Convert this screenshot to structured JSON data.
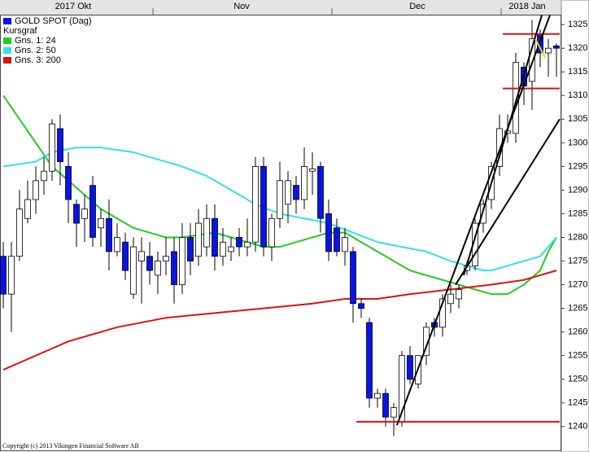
{
  "chart_data": {
    "type": "candlestick",
    "name": "GOLD SPOT (Dag)",
    "legend_note": "Kursgraf",
    "copyright": "Copyright (c) 2013 Vikingen Financial Software AB",
    "up_color": "#ffffff",
    "down_color": "#0a14e6",
    "open": [
      1276,
      1268,
      1276,
      1284,
      1288,
      1292,
      1294,
      1303,
      1295,
      1287,
      1284,
      1291,
      1282,
      1284,
      1277,
      1279,
      1268,
      1275,
      1276,
      1272,
      1275,
      1277,
      1270,
      1280,
      1276,
      1278,
      1284,
      1276,
      1277,
      1280,
      1278,
      1279,
      1295,
      1278,
      1284,
      1287,
      1291,
      1288,
      1294,
      1295,
      1285,
      1282,
      1277,
      1277,
      1266,
      1262,
      1246,
      1247,
      1242,
      1241,
      1255,
      1249,
      1255,
      1262,
      1261,
      1266,
      1267,
      1273,
      1274,
      1283,
      1288,
      1295,
      1302,
      1302,
      1316,
      1313,
      1323,
      1319,
      1320.5
    ],
    "high": [
      1279,
      1279,
      1290,
      1292,
      1295,
      1297,
      1305,
      1306,
      1298,
      1288,
      1289,
      1293,
      1286,
      1288,
      1283,
      1281,
      1280,
      1280,
      1279,
      1277,
      1280,
      1280,
      1283,
      1283,
      1286,
      1287,
      1287,
      1282,
      1280,
      1282,
      1284,
      1297,
      1297,
      1285,
      1296,
      1294,
      1293,
      1299,
      1298,
      1296,
      1288,
      1284,
      1282,
      1278,
      1267,
      1263,
      1248,
      1248,
      1245,
      1256,
      1257,
      1255,
      1262,
      1263,
      1268,
      1270,
      1270,
      1275,
      1284,
      1288,
      1296,
      1306,
      1306,
      1319,
      1317,
      1326,
      1324,
      1322,
      1321
    ],
    "low": [
      1265,
      1260,
      1275,
      1283,
      1285,
      1289,
      1292,
      1291,
      1283,
      1278,
      1279,
      1278,
      1278,
      1273,
      1276,
      1271,
      1267,
      1266,
      1270,
      1268,
      1272,
      1266,
      1268,
      1272,
      1274,
      1276,
      1273,
      1274,
      1275,
      1276,
      1276,
      1277,
      1276,
      1275,
      1282,
      1283,
      1285,
      1286,
      1289,
      1281,
      1275,
      1276,
      1274,
      1262,
      1263,
      1244,
      1244,
      1240,
      1238,
      1240,
      1249,
      1248,
      1253,
      1259,
      1259,
      1264,
      1265,
      1272,
      1273,
      1281,
      1286,
      1293,
      1300,
      1300,
      1308,
      1307,
      1316,
      1314,
      1314
    ],
    "close": [
      1268,
      1276,
      1286,
      1288,
      1292,
      1294,
      1304,
      1296,
      1288,
      1283,
      1286,
      1280,
      1284,
      1277,
      1280,
      1273,
      1278,
      1277,
      1273,
      1275,
      1276,
      1270,
      1280,
      1275,
      1283,
      1284,
      1276,
      1279,
      1278,
      1278,
      1279,
      1295,
      1278,
      1284,
      1292,
      1292,
      1288,
      1295,
      1294.5,
      1284,
      1277,
      1277,
      1280,
      1266,
      1265,
      1246,
      1247,
      1242,
      1244,
      1255,
      1250,
      1255,
      1261,
      1261,
      1267,
      1268,
      1269,
      1274,
      1283,
      1287,
      1295,
      1303,
      1302.5,
      1317,
      1312,
      1322,
      1319,
      1320,
      1320
    ],
    "series": [
      {
        "name": "Gns. 1: 24",
        "color": "#22cc22",
        "x": [
          0,
          4,
          6,
          8,
          10,
          12,
          14,
          16,
          18,
          20,
          22,
          26,
          28,
          30,
          32,
          34,
          36,
          38,
          40,
          42,
          44,
          46,
          48,
          50,
          52,
          54,
          56,
          58,
          60,
          62,
          64,
          66,
          67,
          68
        ],
        "values": [
          1310,
          1300,
          1295,
          1292,
          1289,
          1286,
          1284,
          1282,
          1281,
          1280,
          1280,
          1281,
          1280,
          1279,
          1278,
          1278,
          1279,
          1280,
          1281,
          1281,
          1279,
          1277,
          1275,
          1273,
          1272,
          1271,
          1270,
          1269,
          1268,
          1268,
          1270,
          1273,
          1277,
          1280
        ]
      },
      {
        "name": "Gns. 2: 50",
        "color": "#33e0e8",
        "x": [
          0,
          4,
          6,
          9,
          12,
          16,
          18,
          22,
          25,
          28,
          31,
          34,
          37,
          40,
          43,
          46,
          49,
          52,
          55,
          57,
          59,
          60,
          62,
          64,
          66,
          67,
          68
        ],
        "values": [
          1295,
          1296,
          1298,
          1299,
          1299,
          1298,
          1297,
          1295,
          1293,
          1290,
          1287,
          1285,
          1284,
          1283,
          1281,
          1279,
          1278,
          1277,
          1275,
          1274,
          1273,
          1273,
          1274,
          1275,
          1276,
          1278,
          1280
        ]
      },
      {
        "name": "Gns. 3: 200",
        "color": "#dd1111",
        "x": [
          0,
          4,
          8,
          14,
          20,
          26,
          32,
          38,
          42,
          46,
          50,
          55,
          60,
          64,
          68
        ],
        "values": [
          1252,
          1255,
          1258,
          1261,
          1263,
          1264,
          1265,
          1266,
          1267,
          1267,
          1268,
          1269,
          1270,
          1271,
          1273
        ]
      }
    ],
    "lines": [
      {
        "color": "#dd1111",
        "x": [
          43.4,
          68.4
        ],
        "values": [
          1241,
          1241
        ]
      },
      {
        "color": "#dd1111",
        "x": [
          61.4,
          68.4
        ],
        "values": [
          1311.5,
          1311.5
        ]
      },
      {
        "color": "#dd1111",
        "x": [
          61.4,
          68.4
        ],
        "values": [
          1323,
          1323
        ]
      },
      {
        "color": "#000000",
        "x": [
          48.4,
          67.2
        ],
        "values": [
          1240.3,
          1327
        ]
      },
      {
        "color": "#000000",
        "x": [
          56.6,
          66.2
        ],
        "values": [
          1272,
          1327
        ]
      },
      {
        "color": "#000000",
        "x": [
          55.6,
          68.4
        ],
        "values": [
          1270,
          1305
        ]
      },
      {
        "color": "#e8d020",
        "x": [
          65.4,
          66.6
        ],
        "values": [
          1322,
          1318
        ]
      }
    ],
    "xlim": [
      -0.4,
      68.6
    ],
    "xticks": [
      18.4,
      40.4,
      61.2
    ],
    "month_labels": [
      {
        "value": 8.6,
        "label": "2017 Okt"
      },
      {
        "value": 29.3,
        "label": "Nov"
      },
      {
        "value": 50.9,
        "label": "Dec"
      },
      {
        "value": 64.4,
        "label": "2018 Jan"
      }
    ],
    "ylim": [
      1237.2,
      1327.1
    ],
    "yticks": [
      1240,
      1245,
      1250,
      1255,
      1260,
      1265,
      1270,
      1275,
      1280,
      1285,
      1290,
      1295,
      1300,
      1305,
      1310,
      1315,
      1320,
      1325
    ]
  }
}
